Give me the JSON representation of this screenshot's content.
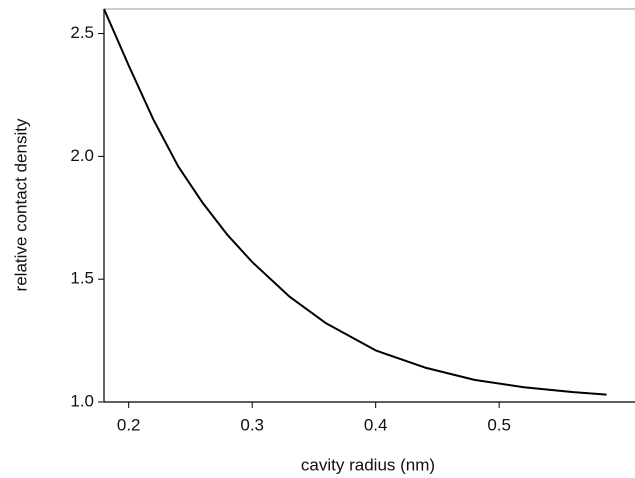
{
  "chart_data": {
    "type": "line",
    "x_label": "cavity radius (nm)",
    "y_label": "relative contact density",
    "xlim": [
      0.18,
      0.61
    ],
    "ylim": [
      1.0,
      2.6
    ],
    "xticks": [
      0.2,
      0.3,
      0.4,
      0.5
    ],
    "yticks": [
      {
        "value": 1.0,
        "label": "1.0"
      },
      {
        "value": 1.5,
        "label": "1.5"
      },
      {
        "value": 2.0,
        "label": "2.0"
      },
      {
        "value": 2.5,
        "label": "2.5"
      }
    ],
    "x": [
      0.18,
      0.2,
      0.22,
      0.24,
      0.26,
      0.28,
      0.3,
      0.33,
      0.36,
      0.4,
      0.44,
      0.48,
      0.52,
      0.56,
      0.587
    ],
    "series": [
      {
        "color": "#000000",
        "values": [
          2.6,
          2.37,
          2.15,
          1.96,
          1.81,
          1.68,
          1.57,
          1.43,
          1.32,
          1.21,
          1.14,
          1.09,
          1.06,
          1.04,
          1.03
        ]
      }
    ]
  }
}
